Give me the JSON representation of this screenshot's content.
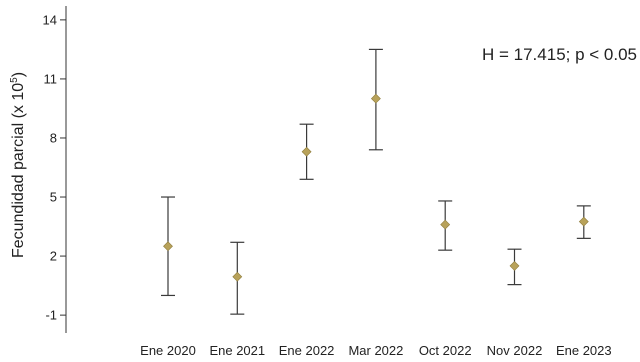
{
  "chart_data": {
    "type": "scatter",
    "title": "",
    "xlabel": "",
    "ylabel": "Fecundidad parcial (x 10",
    "ylabel_superscript": "5",
    "ylabel_suffix": ")",
    "categories": [
      "Ene 2020",
      "Ene 2021",
      "Ene 2022",
      "Mar 2022",
      "Oct 2022",
      "Nov 2022",
      "Ene 2023"
    ],
    "series": [
      {
        "mean": [
          2.5,
          0.95,
          7.3,
          10.0,
          3.6,
          1.5,
          3.75
        ],
        "lower": [
          0.0,
          -0.95,
          5.9,
          7.4,
          2.3,
          0.55,
          2.9
        ],
        "upper": [
          5.0,
          2.7,
          8.7,
          12.5,
          4.8,
          2.35,
          4.55
        ],
        "marker": "diamond",
        "marker_color": "#b8a25a",
        "error_bar_color": "#3a3a3a"
      }
    ],
    "ylim": [
      -1.4,
      14.4
    ],
    "yticks": [
      -1,
      2,
      5,
      8,
      11,
      14
    ],
    "grid": false,
    "annotation": "H = 17.415; p < 0.05"
  }
}
